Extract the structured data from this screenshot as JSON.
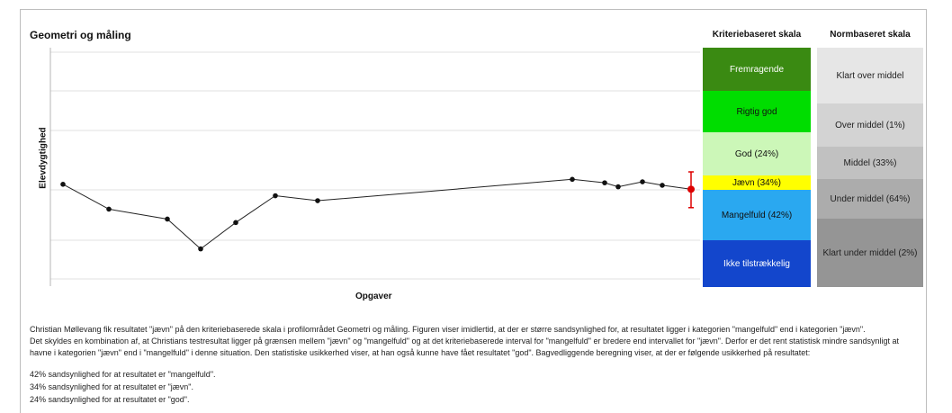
{
  "title": "Geometri og måling",
  "ylabel": "Elevdygtighed",
  "xlabel": "Opgaver",
  "criteria": {
    "header": "Kriteriebaseret skala",
    "bands": [
      {
        "label": "Fremragende",
        "color": "#3a8a12",
        "text_color": "#ffffff"
      },
      {
        "label": "Rigtig god",
        "color": "#00dd00",
        "text_color": "#111111"
      },
      {
        "label": "God (24%)",
        "color": "#ccf7b8",
        "text_color": "#111111"
      },
      {
        "label": "Jævn (34%)",
        "color": "#ffff00",
        "text_color": "#111111"
      },
      {
        "label": "Mangelfuld (42%)",
        "color": "#2aa8f0",
        "text_color": "#111111"
      },
      {
        "label": "Ikke tilstrækkelig",
        "color": "#1346cc",
        "text_color": "#ffffff"
      }
    ]
  },
  "norm": {
    "header": "Normbaseret skala",
    "bands": [
      {
        "label": "Klart over middel",
        "color": "#e6e6e6"
      },
      {
        "label": "Over middel (1%)",
        "color": "#d3d3d3"
      },
      {
        "label": "Middel (33%)",
        "color": "#c1c1c1"
      },
      {
        "label": "Under middel (64%)",
        "color": "#acacac"
      },
      {
        "label": "Klart under middel (2%)",
        "color": "#959595"
      }
    ]
  },
  "chart_data": {
    "type": "line",
    "points": [
      {
        "x": 1,
        "y": 0.05
      },
      {
        "x": 2,
        "y": -0.45
      },
      {
        "x": 3,
        "y": -0.65
      },
      {
        "x": 4,
        "y": -1.25
      },
      {
        "x": 5,
        "y": -0.72
      },
      {
        "x": 6,
        "y": -0.18
      },
      {
        "x": 7,
        "y": -0.28
      },
      {
        "x": 8,
        "y": 0.15
      },
      {
        "x": 9,
        "y": 0.08
      },
      {
        "x": 10,
        "y": 0.0
      },
      {
        "x": 11,
        "y": 0.1
      },
      {
        "x": 12,
        "y": 0.03
      }
    ],
    "estimate": {
      "y": -0.05,
      "low": -0.42,
      "high": 0.3,
      "color": "#dd0000"
    },
    "ylim": [
      -2.0,
      2.8
    ],
    "grid": true
  },
  "text": {
    "name": "Christian Møllevang",
    "p1": " fik resultatet \"jævn\" på den kriteriebaserede skala i profilområdet Geometri og måling. Figuren viser imidlertid, at der er større sandsynlighed for, at resultatet ligger i kategorien \"mangelfuld\" end i kategorien \"jævn\".",
    "p2a": "Det skyldes en kombination af, at ",
    "name2": "Christians",
    "p2b": " testresultat ligger på grænsen mellem \"jævn\" og \"mangelfuld\" og at det kriteriebaserede interval for \"mangelfuld\" er bredere end intervallet for \"jævn\". Derfor er det rent statistisk mindre sandsynligt at havne i kategorien \"jævn\" end i \"mangelfuld\" i denne situation. Den statistiske usikkerhed viser, at ",
    "pronoun": "han",
    "p2c": " også kunne have fået resultatet \"god\". Bagvedliggende beregning viser, at der er følgende usikkerhed på resultatet:",
    "prob1": "42% sandsynlighed for at resultatet er \"mangelfuld\".",
    "prob2": "34% sandsynlighed for at resultatet er \"jævn\".",
    "prob3": "24% sandsynlighed for at resultatet er \"god\"."
  }
}
